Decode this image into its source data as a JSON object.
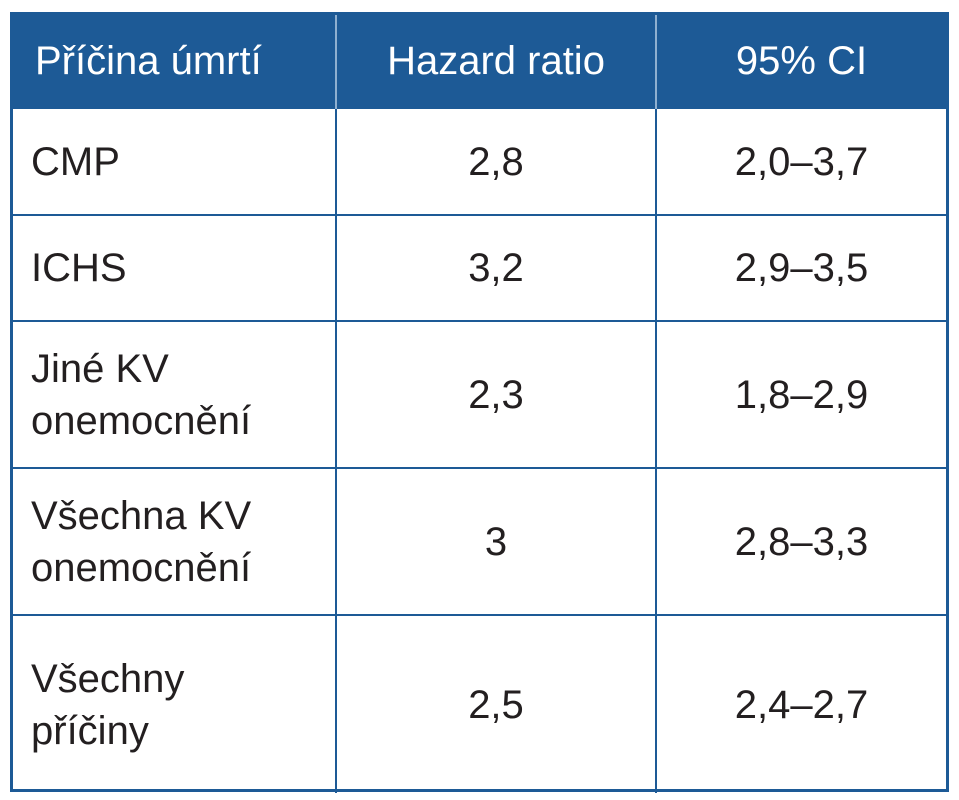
{
  "table": {
    "header": [
      "Příčina úmrtí",
      "Hazard ratio",
      "95% CI"
    ],
    "rows": [
      [
        "CMP",
        "2,8",
        "2,0–3,7"
      ],
      [
        "ICHS",
        "3,2",
        "2,9–3,5"
      ],
      [
        "Jiné KV onemocnění",
        "2,3",
        "1,8–2,9"
      ],
      [
        "Všechna KV onemocnění",
        "3",
        "2,8–3,3"
      ],
      [
        "Všechny příčiny",
        "2,5",
        "2,4–2,7"
      ]
    ]
  }
}
